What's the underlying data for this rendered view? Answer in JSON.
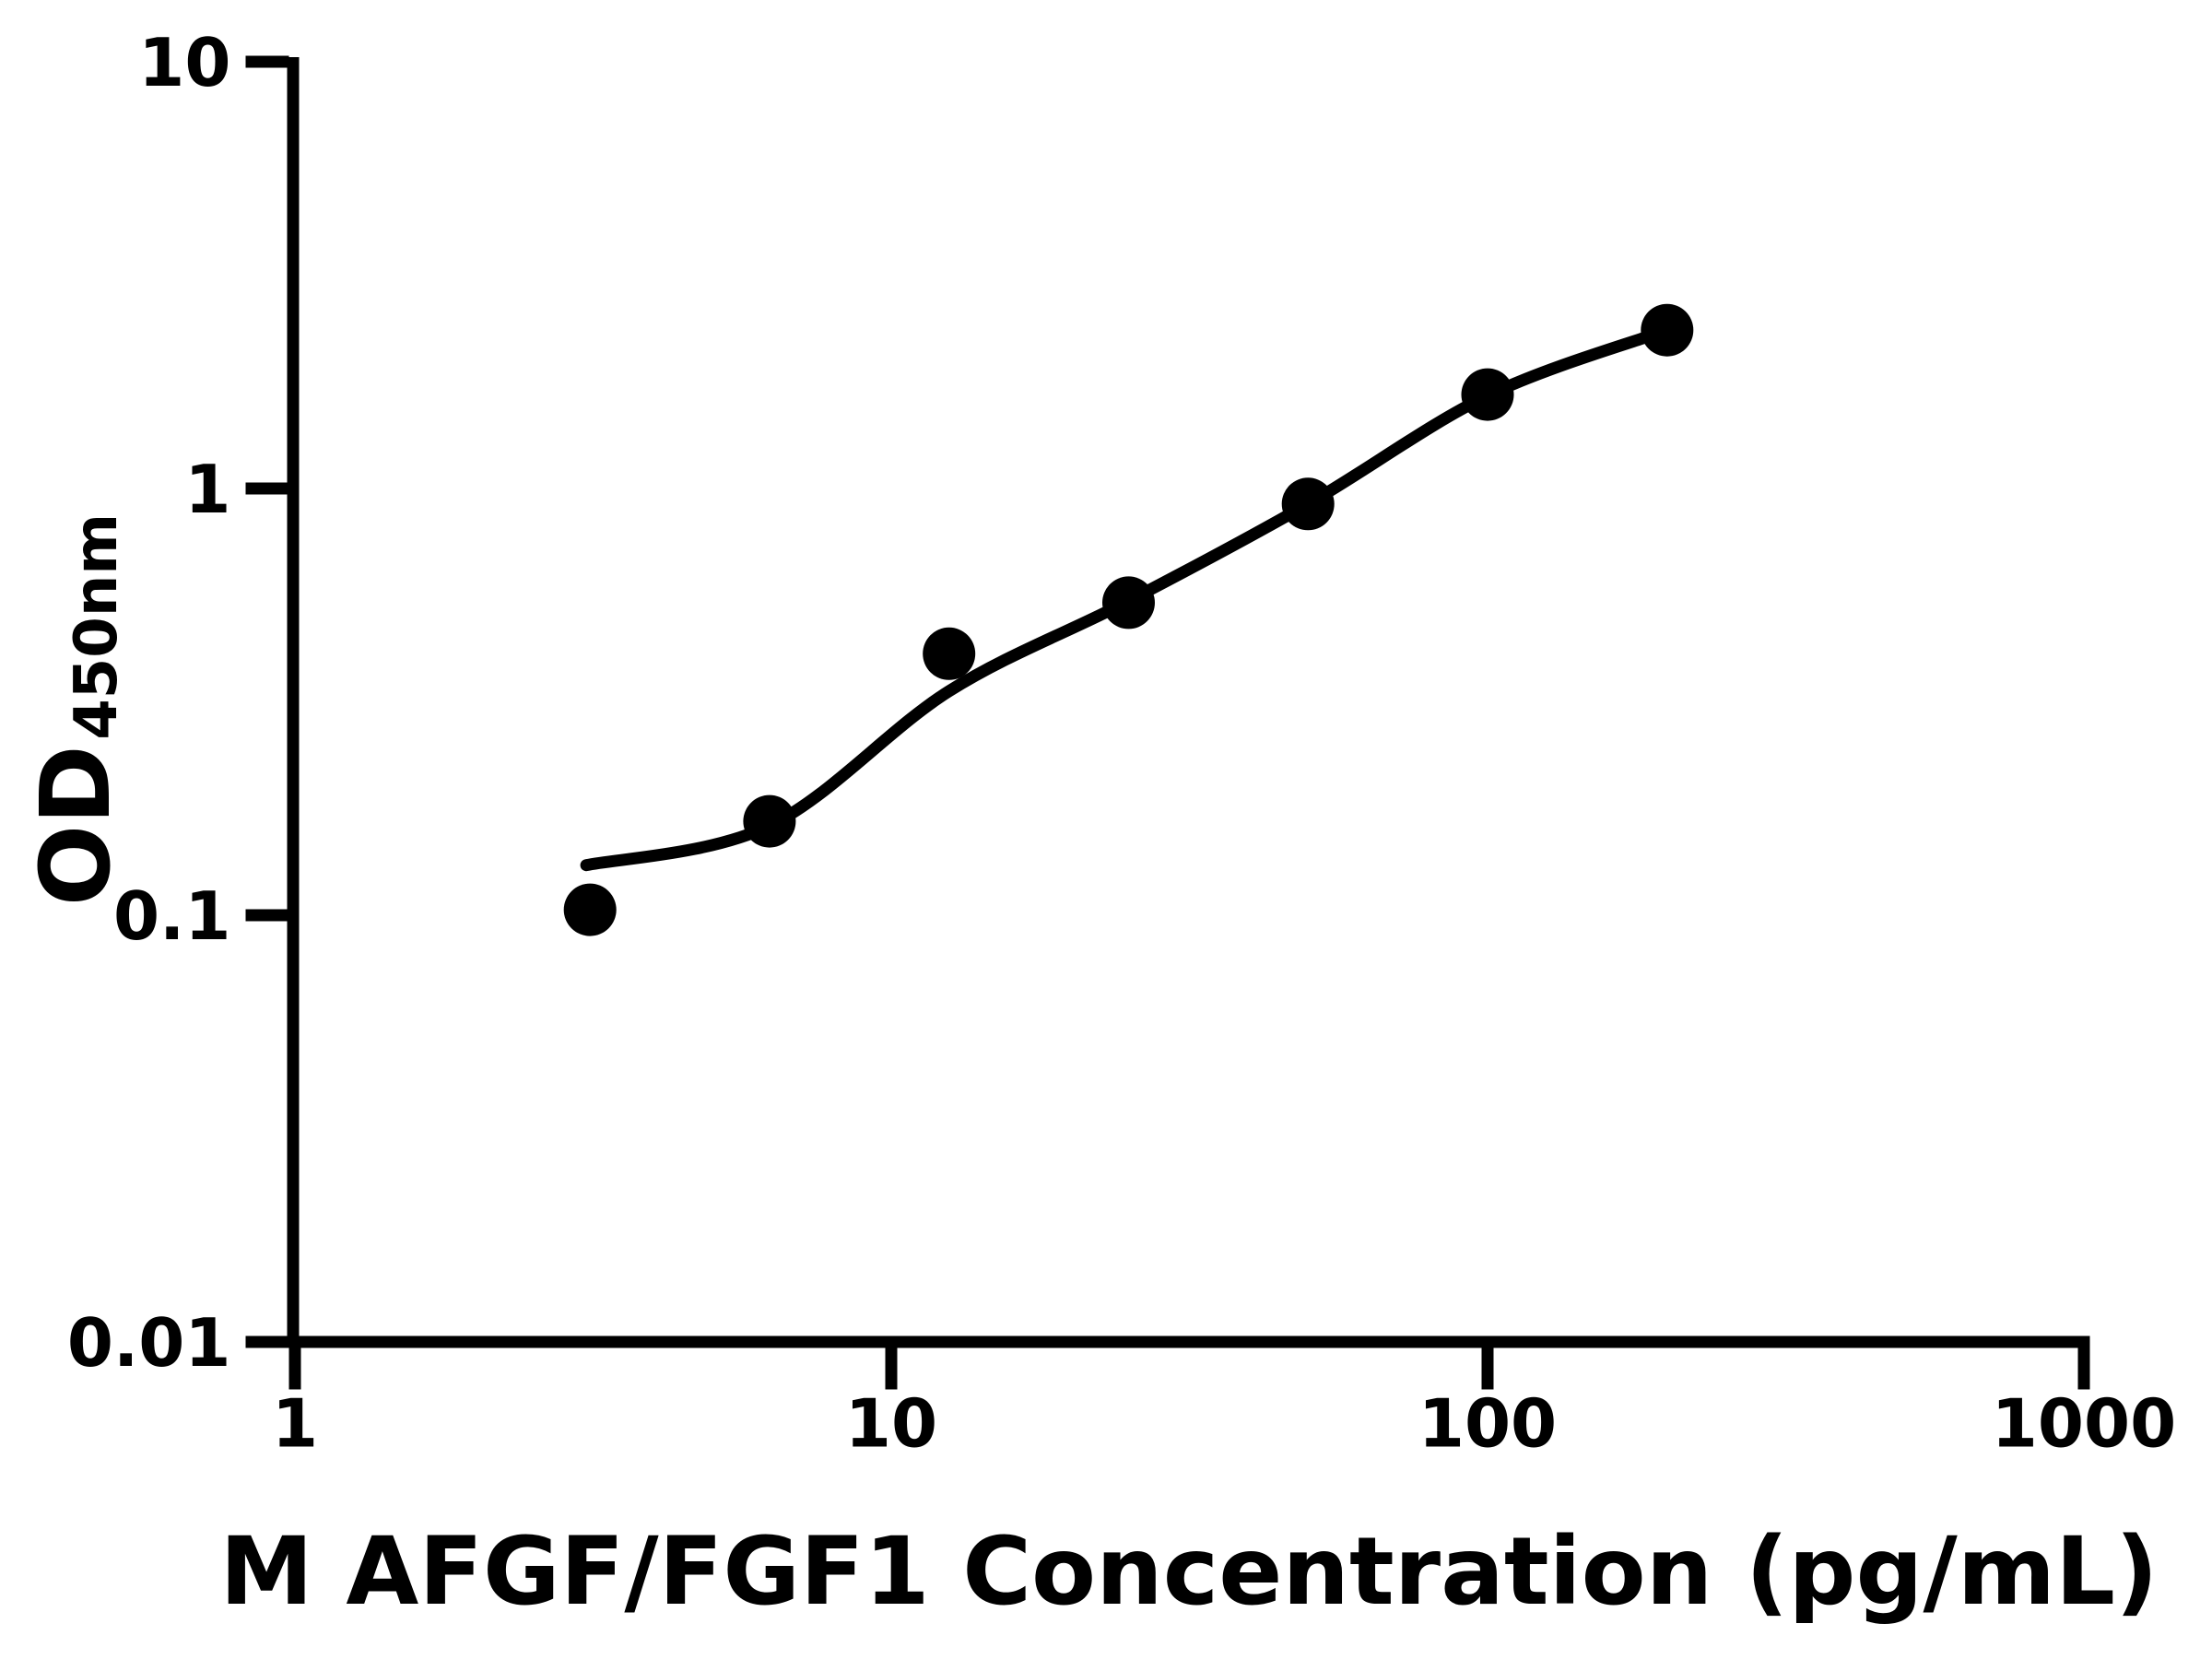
{
  "figure": {
    "background_color": "#ffffff",
    "ink_color": "#000000"
  },
  "chart_data": {
    "type": "scatter",
    "title": "",
    "xlabel": "M AFGF/FGF1 Concentration (pg/mL)",
    "ylabel": "OD450nm",
    "ylabel_main": "OD",
    "ylabel_sub": "450nm",
    "x_scale": "log",
    "y_scale": "log",
    "xlim": [
      1,
      1000
    ],
    "ylim": [
      0.01,
      10
    ],
    "grid": false,
    "legend": false,
    "x_ticks": [
      {
        "value": 1,
        "label": "1"
      },
      {
        "value": 10,
        "label": "10"
      },
      {
        "value": 100,
        "label": "100"
      },
      {
        "value": 1000,
        "label": "1000"
      }
    ],
    "y_ticks": [
      {
        "value": 0.01,
        "label": "0.01"
      },
      {
        "value": 0.1,
        "label": "0.1"
      },
      {
        "value": 1,
        "label": "1"
      },
      {
        "value": 10,
        "label": "10"
      }
    ],
    "series": [
      {
        "name": "standard curve data points",
        "kind": "scatter",
        "marker": "filled-circle",
        "color": "#000000",
        "points": [
          {
            "x": 3.125,
            "y": 0.103
          },
          {
            "x": 6.25,
            "y": 0.166
          },
          {
            "x": 12.5,
            "y": 0.41
          },
          {
            "x": 25,
            "y": 0.54
          },
          {
            "x": 50,
            "y": 0.92
          },
          {
            "x": 100,
            "y": 1.66
          },
          {
            "x": 200,
            "y": 2.35
          }
        ]
      },
      {
        "name": "four-parameter logistic fit curve",
        "kind": "line",
        "color": "#000000",
        "points": [
          {
            "x": 3.08,
            "y": 0.131
          },
          {
            "x": 6.25,
            "y": 0.162
          },
          {
            "x": 12.5,
            "y": 0.335
          },
          {
            "x": 25,
            "y": 0.545
          },
          {
            "x": 50,
            "y": 0.92
          },
          {
            "x": 100,
            "y": 1.65
          },
          {
            "x": 200,
            "y": 2.35
          }
        ]
      }
    ]
  }
}
